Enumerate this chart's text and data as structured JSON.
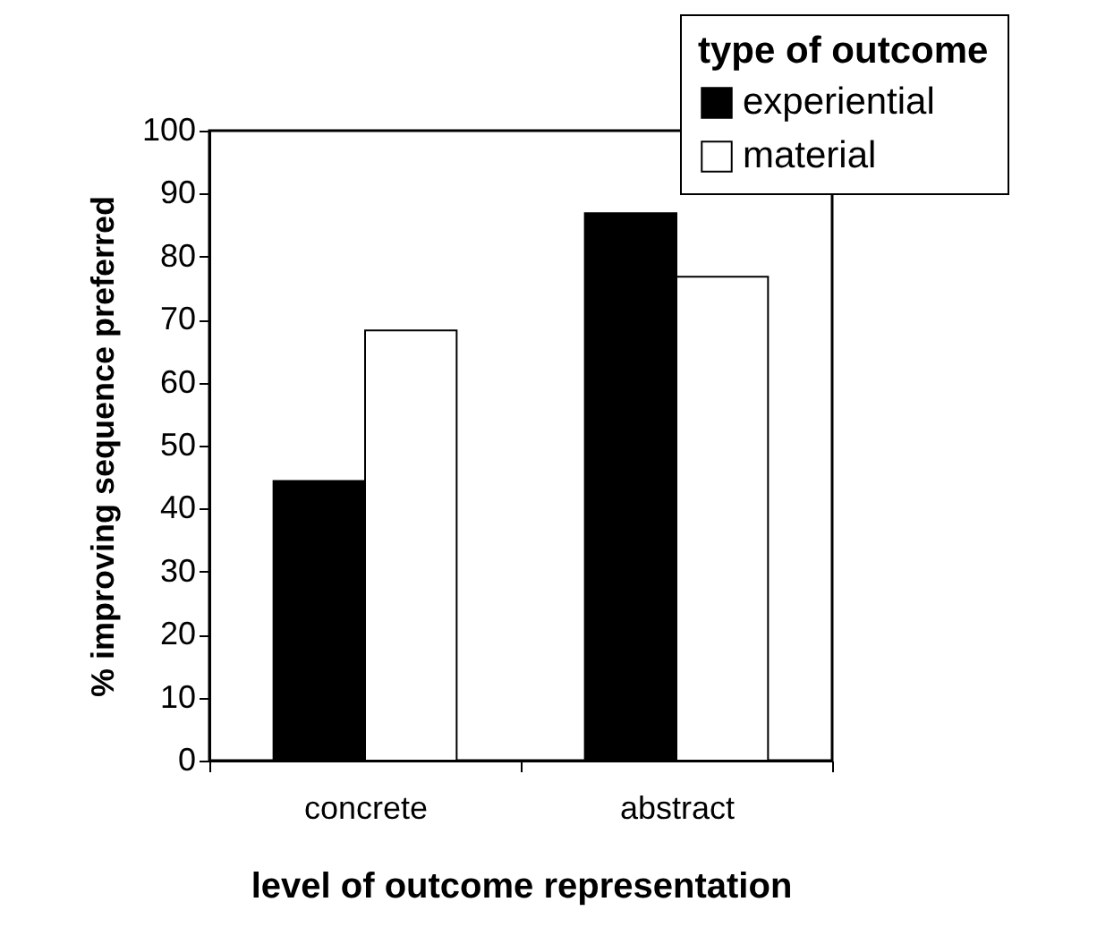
{
  "chart_data": {
    "type": "bar",
    "xlabel": "level of outcome representation",
    "ylabel": "% improving sequence preferred",
    "legend_title": "type of outcome",
    "categories": [
      "concrete",
      "abstract"
    ],
    "series": [
      {
        "name": "experiential",
        "color": "#000000",
        "values": [
          44.4,
          86.9
        ]
      },
      {
        "name": "material",
        "color": "#ffffff",
        "values": [
          68.3,
          76.8
        ]
      }
    ],
    "ylim": [
      0,
      100
    ],
    "yticks": [
      0,
      10,
      20,
      30,
      40,
      50,
      60,
      70,
      80,
      90,
      100
    ],
    "grid": false,
    "legend": "top right"
  }
}
